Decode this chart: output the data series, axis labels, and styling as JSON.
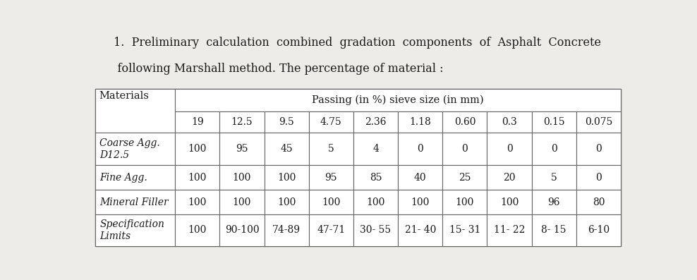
{
  "title_line1": "1.  Preliminary  calculation  combined  gradation  components  of  Asphalt  Concrete",
  "title_line2": "    following Marshall method. The percentage of material :",
  "header_merged": "Passing (in %) sieve size (in mm)",
  "col_header": "Materials",
  "sieve_sizes": [
    "19",
    "12.5",
    "9.5",
    "4.75",
    "2.36",
    "1.18",
    "0.60",
    "0.3",
    "0.15",
    "0.075"
  ],
  "rows": [
    {
      "label": "Coarse Agg.\nD12.5",
      "values": [
        "100",
        "95",
        "45",
        "5",
        "4",
        "0",
        "0",
        "0",
        "0",
        "0"
      ]
    },
    {
      "label": "Fine Agg.",
      "values": [
        "100",
        "100",
        "100",
        "95",
        "85",
        "40",
        "25",
        "20",
        "5",
        "0"
      ]
    },
    {
      "label": "Mineral Filler",
      "values": [
        "100",
        "100",
        "100",
        "100",
        "100",
        "100",
        "100",
        "100",
        "96",
        "80"
      ]
    },
    {
      "label": "Specification\nLimits",
      "values": [
        "100",
        "90-100",
        "74-89",
        "47-71",
        "30- 55",
        "21- 40",
        "15- 31",
        "11- 22",
        "8- 15",
        "6-10"
      ]
    }
  ],
  "bg_color": "#eeece8",
  "table_bg": "#ffffff",
  "text_color": "#1a1a1a",
  "border_color": "#666666",
  "title_fontsize": 11.5,
  "cell_fontsize": 10.5
}
